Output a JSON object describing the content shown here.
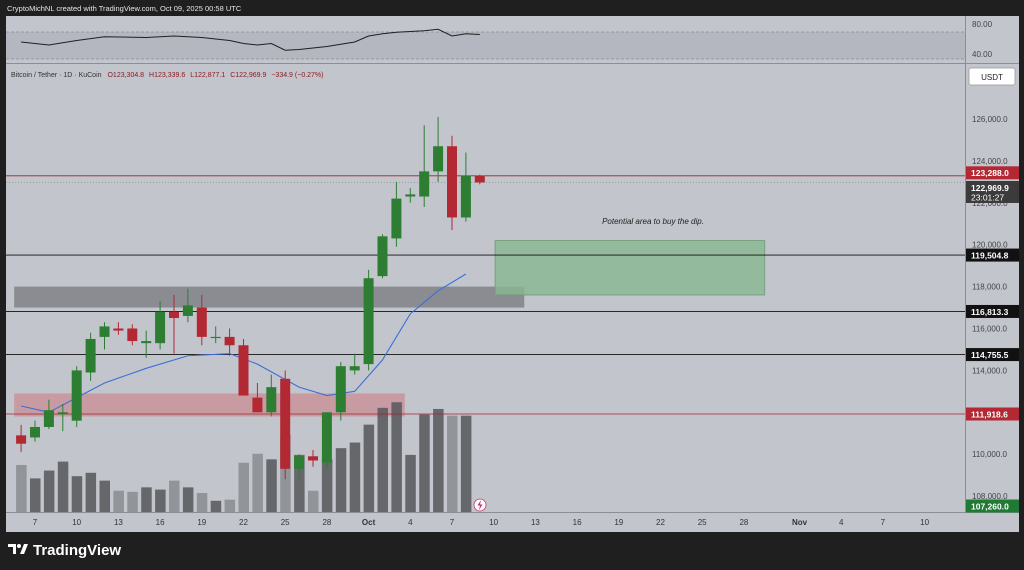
{
  "header": {
    "text": "CryptoMichNL created with TradingView.com, Oct 09, 2025 00:58 UTC"
  },
  "legend": {
    "symbol": "Bitcoin / Tether · 1D · KuCoin",
    "o": "O123,304.8",
    "h": "H123,339.6",
    "l": "L122,877.1",
    "c": "C122,969.9",
    "chg": "−334.9 (−0.27%)"
  },
  "currency_button": "USDT",
  "osc_ticks": [
    "80.00",
    "40.00"
  ],
  "annotation": "Potential area to buy the dip.",
  "footer_brand": "TradingView",
  "colors": {
    "up": "#2d7d32",
    "down": "#b22833",
    "ma": "#3b6fd8",
    "zone": "#88b791",
    "supply_zone": "#c98c95"
  },
  "chart_data": {
    "type": "candlestick",
    "title": "Bitcoin / Tether · 1D · KuCoin",
    "y_ticks": [
      "126,000.0",
      "124,000.0",
      "122,000.0",
      "120,000.0",
      "118,000.0",
      "116,000.0",
      "114,000.0",
      "112,000.0",
      "110,000.0",
      "108,000.0"
    ],
    "x_ticks": [
      {
        "label": "7",
        "day": 7
      },
      {
        "label": "10",
        "day": 10
      },
      {
        "label": "13",
        "day": 13
      },
      {
        "label": "16",
        "day": 16
      },
      {
        "label": "19",
        "day": 19
      },
      {
        "label": "22",
        "day": 22
      },
      {
        "label": "25",
        "day": 25
      },
      {
        "label": "28",
        "day": 28
      },
      {
        "label": "Oct",
        "day": 31
      },
      {
        "label": "4",
        "day": 34
      },
      {
        "label": "7",
        "day": 37
      },
      {
        "label": "10",
        "day": 40
      },
      {
        "label": "13",
        "day": 43
      },
      {
        "label": "16",
        "day": 46
      },
      {
        "label": "19",
        "day": 49
      },
      {
        "label": "22",
        "day": 52
      },
      {
        "label": "25",
        "day": 55
      },
      {
        "label": "28",
        "day": 58
      },
      {
        "label": "Nov",
        "day": 62
      },
      {
        "label": "4",
        "day": 65
      },
      {
        "label": "7",
        "day": 68
      },
      {
        "label": "10",
        "day": 71
      }
    ],
    "candles": [
      {
        "day": 6,
        "o": 110900,
        "h": 111400,
        "l": 110100,
        "c": 110500,
        "v": 0.42
      },
      {
        "day": 7,
        "o": 110800,
        "h": 111600,
        "l": 110600,
        "c": 111300,
        "v": 0.3
      },
      {
        "day": 8,
        "o": 111300,
        "h": 112600,
        "l": 111200,
        "c": 112100,
        "v": 0.37
      },
      {
        "day": 9,
        "o": 111900,
        "h": 112400,
        "l": 111100,
        "c": 112000,
        "v": 0.45
      },
      {
        "day": 10,
        "o": 111600,
        "h": 114200,
        "l": 111300,
        "c": 114000,
        "v": 0.32
      },
      {
        "day": 11,
        "o": 113900,
        "h": 115800,
        "l": 113500,
        "c": 115500,
        "v": 0.35
      },
      {
        "day": 12,
        "o": 115600,
        "h": 116300,
        "l": 115000,
        "c": 116100,
        "v": 0.28
      },
      {
        "day": 13,
        "o": 116000,
        "h": 116300,
        "l": 115700,
        "c": 115900,
        "v": 0.19
      },
      {
        "day": 14,
        "o": 116000,
        "h": 116200,
        "l": 115200,
        "c": 115400,
        "v": 0.18
      },
      {
        "day": 15,
        "o": 115300,
        "h": 115900,
        "l": 114600,
        "c": 115400,
        "v": 0.22
      },
      {
        "day": 16,
        "o": 115300,
        "h": 117300,
        "l": 115000,
        "c": 116800,
        "v": 0.2
      },
      {
        "day": 17,
        "o": 116800,
        "h": 117600,
        "l": 114800,
        "c": 116500,
        "v": 0.28
      },
      {
        "day": 18,
        "o": 116600,
        "h": 117900,
        "l": 116300,
        "c": 117100,
        "v": 0.22
      },
      {
        "day": 19,
        "o": 117000,
        "h": 117600,
        "l": 115200,
        "c": 115600,
        "v": 0.17
      },
      {
        "day": 20,
        "o": 115600,
        "h": 116100,
        "l": 115300,
        "c": 115600,
        "v": 0.1
      },
      {
        "day": 21,
        "o": 115600,
        "h": 116000,
        "l": 114700,
        "c": 115200,
        "v": 0.11
      },
      {
        "day": 22,
        "o": 115200,
        "h": 115500,
        "l": 112800,
        "c": 112800,
        "v": 0.44
      },
      {
        "day": 23,
        "o": 112700,
        "h": 113400,
        "l": 112000,
        "c": 112000,
        "v": 0.52
      },
      {
        "day": 24,
        "o": 112000,
        "h": 113800,
        "l": 111800,
        "c": 113200,
        "v": 0.47
      },
      {
        "day": 25,
        "o": 113600,
        "h": 114000,
        "l": 108800,
        "c": 109300,
        "v": 0.69
      },
      {
        "day": 26,
        "o": 109300,
        "h": 110000,
        "l": 108700,
        "c": 109900,
        "v": 0.51
      },
      {
        "day": 27,
        "o": 109900,
        "h": 110200,
        "l": 109400,
        "c": 109700,
        "v": 0.19
      },
      {
        "day": 28,
        "o": 109600,
        "h": 112000,
        "l": 109300,
        "c": 112000,
        "v": 0.47
      },
      {
        "day": 29,
        "o": 112000,
        "h": 114400,
        "l": 111600,
        "c": 114200,
        "v": 0.57
      },
      {
        "day": 30,
        "o": 114000,
        "h": 114800,
        "l": 113800,
        "c": 114200,
        "v": 0.62
      },
      {
        "day": 31,
        "o": 114300,
        "h": 118800,
        "l": 114000,
        "c": 118400,
        "v": 0.78
      },
      {
        "day": 32,
        "o": 118500,
        "h": 120500,
        "l": 118400,
        "c": 120400,
        "v": 0.93
      },
      {
        "day": 33,
        "o": 120300,
        "h": 123000,
        "l": 119900,
        "c": 122200,
        "v": 0.98
      },
      {
        "day": 34,
        "o": 122300,
        "h": 122700,
        "l": 122000,
        "c": 122400,
        "v": 0.51
      },
      {
        "day": 35,
        "o": 122300,
        "h": 125700,
        "l": 121800,
        "c": 123500,
        "v": 0.87
      },
      {
        "day": 36,
        "o": 123500,
        "h": 126100,
        "l": 123000,
        "c": 124700,
        "v": 0.92
      },
      {
        "day": 37,
        "o": 124700,
        "h": 125200,
        "l": 120700,
        "c": 121300,
        "v": 0.86
      },
      {
        "day": 38,
        "o": 121300,
        "h": 124400,
        "l": 121100,
        "c": 123300,
        "v": 0.86
      },
      {
        "day": 39,
        "o": 123300,
        "h": 123340,
        "l": 122880,
        "c": 122970,
        "v": 0.0
      }
    ],
    "ma": [
      {
        "day": 6,
        "v": 112300
      },
      {
        "day": 8,
        "v": 112000
      },
      {
        "day": 10,
        "v": 112700
      },
      {
        "day": 12,
        "v": 113400
      },
      {
        "day": 15,
        "v": 114100
      },
      {
        "day": 18,
        "v": 114700
      },
      {
        "day": 21,
        "v": 114800
      },
      {
        "day": 23,
        "v": 114300
      },
      {
        "day": 26,
        "v": 113200
      },
      {
        "day": 28,
        "v": 112800
      },
      {
        "day": 30,
        "v": 113000
      },
      {
        "day": 32,
        "v": 114500
      },
      {
        "day": 34,
        "v": 116700
      },
      {
        "day": 36,
        "v": 117800
      },
      {
        "day": 38,
        "v": 118600
      }
    ],
    "rsi": [
      {
        "day": 6,
        "v": 56
      },
      {
        "day": 8,
        "v": 52
      },
      {
        "day": 10,
        "v": 58
      },
      {
        "day": 12,
        "v": 63
      },
      {
        "day": 15,
        "v": 62
      },
      {
        "day": 17,
        "v": 64
      },
      {
        "day": 19,
        "v": 62
      },
      {
        "day": 21,
        "v": 58
      },
      {
        "day": 22,
        "v": 54
      },
      {
        "day": 23,
        "v": 52
      },
      {
        "day": 24,
        "v": 54
      },
      {
        "day": 25,
        "v": 45
      },
      {
        "day": 26,
        "v": 46
      },
      {
        "day": 27,
        "v": 48
      },
      {
        "day": 28,
        "v": 50
      },
      {
        "day": 29,
        "v": 53
      },
      {
        "day": 30,
        "v": 56
      },
      {
        "day": 31,
        "v": 64
      },
      {
        "day": 32,
        "v": 67
      },
      {
        "day": 33,
        "v": 69
      },
      {
        "day": 35,
        "v": 71
      },
      {
        "day": 36,
        "v": 73
      },
      {
        "day": 37,
        "v": 64
      },
      {
        "day": 38,
        "v": 67
      },
      {
        "day": 39,
        "v": 66
      }
    ],
    "horizontal_levels": [
      {
        "price": 123288.0,
        "label": "123,288.0",
        "style": "red"
      },
      {
        "price": 122969.9,
        "label": "122,969.9",
        "style": "last"
      },
      {
        "price": 119504.8,
        "label": "119,504.8",
        "style": "black"
      },
      {
        "price": 116813.3,
        "label": "116,813.3",
        "style": "black"
      },
      {
        "price": 114755.5,
        "label": "114,755.5",
        "style": "black"
      },
      {
        "price": 111918.6,
        "label": "111,918.6",
        "style": "red"
      },
      {
        "price": 107260.0,
        "label": "107,260.0",
        "style": "green"
      }
    ],
    "countdown": "23:01:27",
    "zones": [
      {
        "kind": "gray",
        "day_start": 5.5,
        "day_end": 42.2,
        "price_top": 118000,
        "price_bottom": 117000
      },
      {
        "kind": "red",
        "day_start": 5.5,
        "day_end": 33.6,
        "price_top": 112900,
        "price_bottom": 111800
      },
      {
        "kind": "green",
        "day_start": 40.1,
        "day_end": 59.5,
        "price_top": 120200,
        "price_bottom": 117600
      }
    ]
  }
}
